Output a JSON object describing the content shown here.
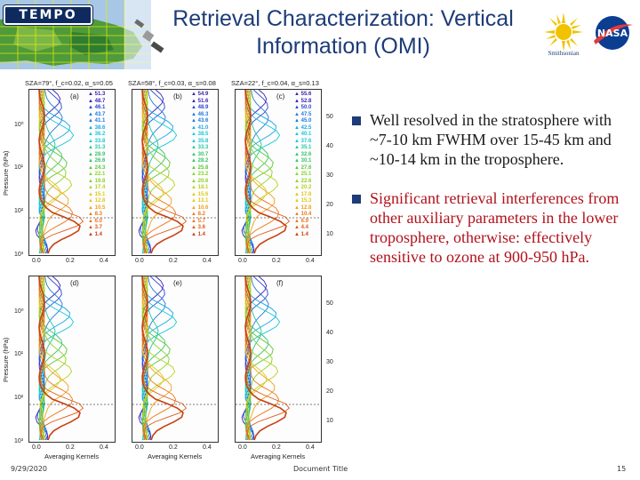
{
  "header": {
    "logo_text": "TEMPO",
    "title_line1": "Retrieval Characterization: Vertical",
    "title_line2": "Information (OMI)",
    "partner_label": "Smithsonian",
    "agency_label": "NASA"
  },
  "figure": {
    "panels": [
      {
        "letter": "(a)",
        "caption": "SZA=79°, f_c=0.02, α_s=0.05",
        "levels": [
          "51.3",
          "48.7",
          "46.1",
          "43.7",
          "41.1",
          "38.6",
          "36.2",
          "33.8",
          "31.3",
          "28.9",
          "26.6",
          "24.3",
          "22.1",
          "19.8",
          "17.4",
          "15.1",
          "12.8",
          "10.5",
          "8.3",
          "6.0",
          "3.7",
          "1.4"
        ]
      },
      {
        "letter": "(b)",
        "caption": "SZA=58°, f_c=0.03, α_s=0.08",
        "levels": [
          "54.9",
          "51.6",
          "48.9",
          "46.3",
          "43.6",
          "41.0",
          "38.5",
          "35.8",
          "33.3",
          "30.7",
          "28.2",
          "25.8",
          "23.2",
          "20.6",
          "18.1",
          "15.6",
          "13.1",
          "10.6",
          "8.2",
          "5.7",
          "3.6",
          "1.4"
        ]
      },
      {
        "letter": "(c)",
        "caption": "SZA=22°, f_c=0.04, α_s=0.13",
        "levels": [
          "55.6",
          "52.8",
          "50.0",
          "47.5",
          "45.0",
          "42.5",
          "40.1",
          "37.6",
          "35.1",
          "32.6",
          "30.1",
          "27.6",
          "25.1",
          "22.6",
          "20.2",
          "17.8",
          "15.3",
          "12.8",
          "10.4",
          "6.9",
          "4.4",
          "1.4"
        ]
      },
      {
        "letter": "(d)",
        "caption": "",
        "levels": []
      },
      {
        "letter": "(e)",
        "caption": "",
        "levels": []
      },
      {
        "letter": "(f)",
        "caption": "",
        "levels": []
      }
    ],
    "x_ticks": [
      "0.0",
      "0.2",
      "0.4"
    ],
    "x_label": "Averaging Kernels",
    "y_label": "Pressure (hPa)",
    "left_ticks": [
      "10⁰",
      "10¹",
      "10²",
      "10³"
    ],
    "right_ticks": [
      "50",
      "40",
      "30",
      "20",
      "10"
    ],
    "curve_colors": [
      "#3a1fb0",
      "#2a45d6",
      "#1f78e0",
      "#18a8e8",
      "#17c9d6",
      "#20c8a0",
      "#35c46a",
      "#5ac838",
      "#8bd22a",
      "#b9d21e",
      "#e0c81a",
      "#f2a018",
      "#f07818",
      "#e05a18",
      "#c84010"
    ]
  },
  "bullets": [
    {
      "text": "Well resolved in the stratosphere with ~7-10 km FWHM over 15-45 km and ~10-14 km in the troposphere."
    },
    {
      "text": "Significant retrieval interferences from other auxiliary parameters in the lower troposphere, otherwise: effectively sensitive to ozone at 900-950 hPa."
    }
  ],
  "footer": {
    "date": "9/29/2020",
    "doc_title": "Document Title",
    "page_number": "15"
  }
}
